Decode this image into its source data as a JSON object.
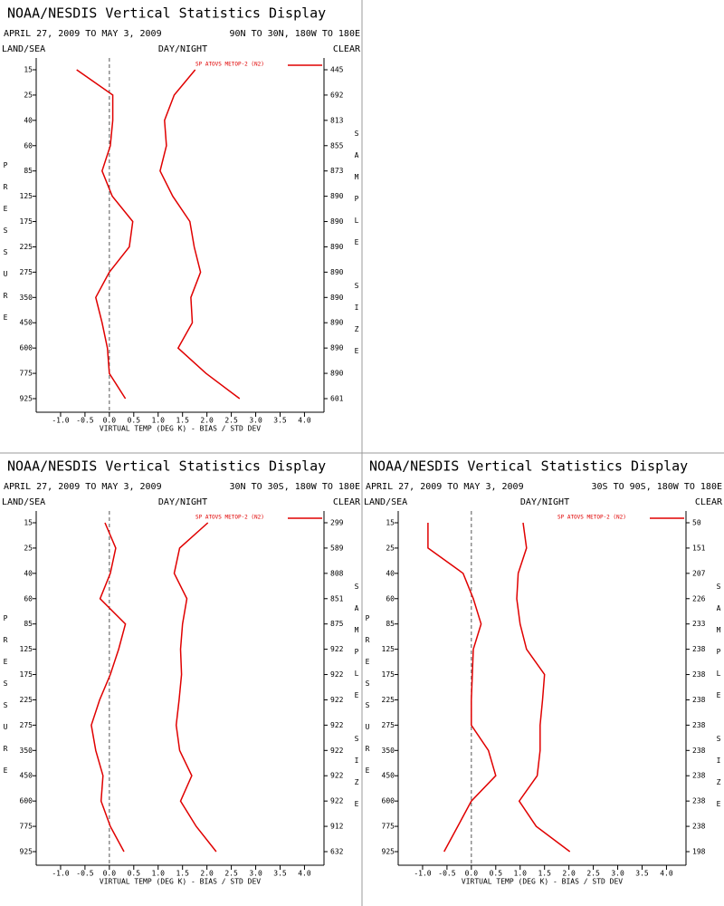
{
  "chart_data": [
    {
      "type": "line",
      "title": "NOAA/NESDIS Vertical Statistics Display",
      "subtitle": "APRIL 27, 2009 TO MAY 3, 2009",
      "region": "90N TO 30N, 180W TO 180E",
      "left_header": "LAND/SEA",
      "center_header": "DAY/NIGHT",
      "right_header": "CLEAR",
      "legend": {
        "label": "SP ATOVS METOP-2 (N2)",
        "color": "#e00000"
      },
      "xlabel": "VIRTUAL TEMP (DEG K) - BIAS / STD DEV",
      "ylabel": "PRESSURE",
      "y2label": "SAMPLE SIZE",
      "categories": [
        15,
        25,
        40,
        60,
        85,
        125,
        175,
        225,
        275,
        350,
        450,
        600,
        775,
        925
      ],
      "sample_size": [
        445,
        692,
        813,
        855,
        873,
        890,
        890,
        890,
        890,
        890,
        890,
        890,
        890,
        601
      ],
      "series": [
        {
          "color": "#e00000",
          "values": [
            -0.67,
            0.07,
            0.07,
            0.02,
            -0.15,
            0.06,
            0.48,
            0.41,
            0.0,
            -0.28,
            -0.15,
            -0.04,
            0.0,
            0.33
          ]
        },
        {
          "color": "#e00000",
          "values": [
            1.76,
            1.33,
            1.13,
            1.17,
            1.04,
            1.3,
            1.65,
            1.74,
            1.87,
            1.67,
            1.7,
            1.41,
            1.98,
            2.67
          ]
        }
      ],
      "xlim": [
        -1.5,
        4.4
      ],
      "xticks": [
        {
          "value": -1,
          "label": "-1.0"
        },
        -0.5,
        {
          "value": 0,
          "label": "0.0"
        },
        0.5,
        {
          "value": 1,
          "label": "1.0"
        },
        1.5,
        {
          "value": 2,
          "label": "2.0"
        },
        2.5,
        {
          "value": 3,
          "label": "3.0"
        },
        3.5,
        {
          "value": 4,
          "label": "4.0"
        }
      ],
      "zero_line": 0
    },
    {
      "type": "line",
      "title": "NOAA/NESDIS Vertical Statistics Display",
      "subtitle": "APRIL 27, 2009 TO MAY 3, 2009",
      "region": "30N TO 30S, 180W TO 180E",
      "left_header": "LAND/SEA",
      "center_header": "DAY/NIGHT",
      "right_header": "CLEAR",
      "legend": {
        "label": "SP ATOVS METOP-2 (N2)",
        "color": "#e00000"
      },
      "xlabel": "VIRTUAL TEMP (DEG K) - BIAS / STD DEV",
      "ylabel": "PRESSURE",
      "y2label": "SAMPLE SIZE",
      "categories": [
        15,
        25,
        40,
        60,
        85,
        125,
        175,
        225,
        275,
        350,
        450,
        600,
        775,
        925
      ],
      "sample_size": [
        299,
        589,
        808,
        851,
        875,
        922,
        922,
        922,
        922,
        922,
        922,
        922,
        912,
        632
      ],
      "series": [
        {
          "color": "#e00000",
          "values": [
            -0.09,
            0.13,
            0.02,
            -0.19,
            0.33,
            0.19,
            0.02,
            -0.2,
            -0.37,
            -0.28,
            -0.13,
            -0.17,
            0.02,
            0.3
          ]
        },
        {
          "color": "#e00000",
          "values": [
            2.02,
            1.44,
            1.33,
            1.59,
            1.5,
            1.46,
            1.48,
            1.43,
            1.37,
            1.44,
            1.69,
            1.46,
            1.78,
            2.19
          ]
        }
      ],
      "xlim": [
        -1.5,
        4.4
      ],
      "xticks": [
        {
          "value": -1,
          "label": "-1.0"
        },
        -0.5,
        {
          "value": 0,
          "label": "0.0"
        },
        0.5,
        {
          "value": 1,
          "label": "1.0"
        },
        1.5,
        {
          "value": 2,
          "label": "2.0"
        },
        2.5,
        {
          "value": 3,
          "label": "3.0"
        },
        3.5,
        {
          "value": 4,
          "label": "4.0"
        }
      ],
      "zero_line": 0
    },
    {
      "type": "line",
      "title": "NOAA/NESDIS Vertical Statistics Display",
      "subtitle": "APRIL 27, 2009 TO MAY 3, 2009",
      "region": "30S TO 90S, 180W TO 180E",
      "left_header": "LAND/SEA",
      "center_header": "DAY/NIGHT",
      "right_header": "CLEAR",
      "legend": {
        "label": "SP ATOVS METOP-2 (N2)",
        "color": "#e00000"
      },
      "xlabel": "VIRTUAL TEMP (DEG K) - BIAS / STD DEV",
      "ylabel": "PRESSURE",
      "y2label": "SAMPLE SIZE",
      "categories": [
        15,
        25,
        40,
        60,
        85,
        125,
        175,
        225,
        275,
        350,
        450,
        600,
        775,
        925
      ],
      "sample_size": [
        50,
        151,
        207,
        226,
        233,
        238,
        238,
        238,
        238,
        238,
        238,
        238,
        238,
        198
      ],
      "series": [
        {
          "color": "#e00000",
          "values": [
            -0.89,
            -0.89,
            -0.17,
            0.04,
            0.2,
            0.04,
            0.02,
            0.0,
            0.0,
            0.35,
            0.5,
            0.0,
            -0.28,
            -0.56
          ]
        },
        {
          "color": "#e00000",
          "values": [
            1.06,
            1.13,
            0.96,
            0.93,
            1.0,
            1.13,
            1.5,
            1.46,
            1.41,
            1.41,
            1.35,
            0.98,
            1.33,
            2.02
          ]
        }
      ],
      "xlim": [
        -1.5,
        4.4
      ],
      "xticks": [
        {
          "value": -1,
          "label": "-1.0"
        },
        -0.5,
        {
          "value": 0,
          "label": "0.0"
        },
        0.5,
        {
          "value": 1,
          "label": "1.0"
        },
        1.5,
        {
          "value": 2,
          "label": "2.0"
        },
        2.5,
        {
          "value": 3,
          "label": "3.0"
        },
        3.5,
        {
          "value": 4,
          "label": "4.0"
        }
      ],
      "zero_line": 0
    }
  ]
}
